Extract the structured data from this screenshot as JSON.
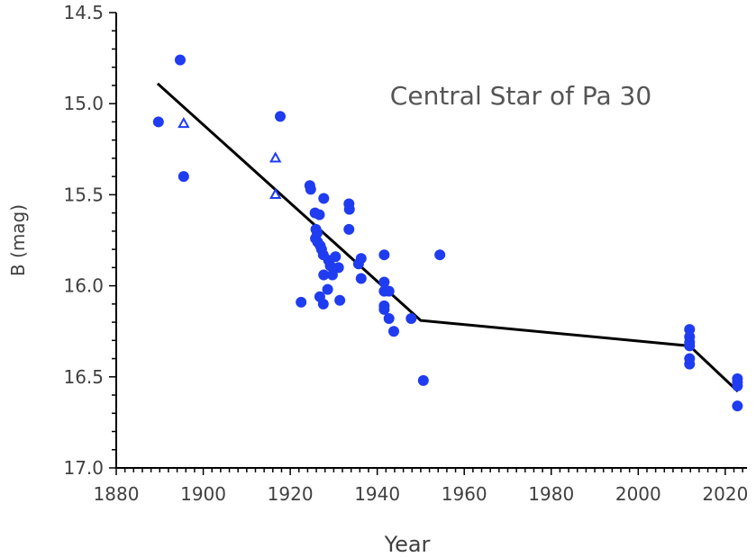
{
  "chart_data": {
    "type": "scatter",
    "title": "Central Star of Pa 30",
    "xlabel": "Year",
    "ylabel": "B (mag)",
    "xlim": [
      1880,
      2025
    ],
    "ylim": [
      14.5,
      17.0
    ],
    "y_inverted": true,
    "x_ticks": [
      1880,
      1900,
      1920,
      1940,
      1960,
      1980,
      2000,
      2020
    ],
    "y_ticks": [
      "14.5",
      "15.0",
      "15.5",
      "16.0",
      "16.5",
      "17.0"
    ],
    "grid": false,
    "colors": {
      "points": "#1f3cf0",
      "fit_line": "#000000",
      "axis": "#000000",
      "text": "#404040"
    },
    "series": [
      {
        "marker": "filled-circle",
        "points": [
          [
            1889.7,
            15.1
          ],
          [
            1894.7,
            14.76
          ],
          [
            1895.5,
            15.4
          ],
          [
            1917.7,
            15.07
          ],
          [
            1922.5,
            16.09
          ],
          [
            1924.5,
            15.45
          ],
          [
            1924.7,
            15.47
          ],
          [
            1925.7,
            15.6
          ],
          [
            1925.9,
            15.69
          ],
          [
            1925.8,
            15.74
          ],
          [
            1926.2,
            15.71
          ],
          [
            1926.7,
            15.61
          ],
          [
            1926.3,
            15.76
          ],
          [
            1926.9,
            15.78
          ],
          [
            1927.2,
            15.8
          ],
          [
            1927.6,
            15.83
          ],
          [
            1926.8,
            16.06
          ],
          [
            1927.6,
            16.1
          ],
          [
            1927.7,
            15.94
          ],
          [
            1927.7,
            15.52
          ],
          [
            1928.6,
            16.02
          ],
          [
            1928.8,
            15.86
          ],
          [
            1929.2,
            15.89
          ],
          [
            1929.7,
            15.94
          ],
          [
            1930.4,
            15.84
          ],
          [
            1931.1,
            15.9
          ],
          [
            1931.4,
            16.08
          ],
          [
            1933.5,
            15.55
          ],
          [
            1933.6,
            15.58
          ],
          [
            1933.5,
            15.69
          ],
          [
            1935.7,
            15.88
          ],
          [
            1936.3,
            15.85
          ],
          [
            1936.3,
            15.96
          ],
          [
            1941.6,
            15.83
          ],
          [
            1941.6,
            15.98
          ],
          [
            1941.6,
            16.03
          ],
          [
            1941.6,
            16.11
          ],
          [
            1941.6,
            16.13
          ],
          [
            1942.7,
            16.03
          ],
          [
            1942.7,
            16.18
          ],
          [
            1943.8,
            16.25
          ],
          [
            1947.8,
            16.18
          ],
          [
            1950.6,
            16.52
          ],
          [
            1954.4,
            15.83
          ],
          [
            2011.8,
            16.24
          ],
          [
            2011.8,
            16.28
          ],
          [
            2011.8,
            16.31
          ],
          [
            2011.8,
            16.33
          ],
          [
            2011.8,
            16.4
          ],
          [
            2011.8,
            16.43
          ],
          [
            2022.8,
            16.51
          ],
          [
            2022.8,
            16.53
          ],
          [
            2022.8,
            16.55
          ],
          [
            2022.8,
            16.66
          ]
        ]
      },
      {
        "marker": "open-triangle",
        "points": [
          [
            1895.5,
            15.11
          ],
          [
            1916.6,
            15.3
          ],
          [
            1916.6,
            15.5
          ]
        ]
      }
    ],
    "fit_line": [
      [
        1889.5,
        14.89
      ],
      [
        1950.0,
        16.19
      ],
      [
        2011.8,
        16.33
      ],
      [
        2022.9,
        16.58
      ]
    ]
  }
}
